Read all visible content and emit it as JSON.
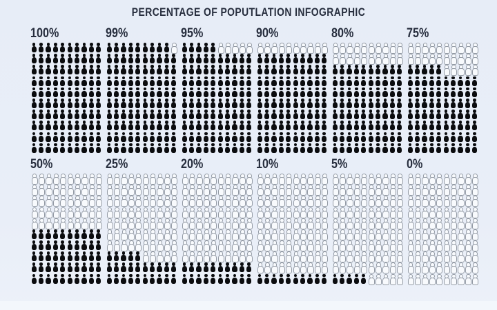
{
  "title": "PERCENTAGE OF POPUTLATION INFOGRAPHIC",
  "colors": {
    "background": "#e9eef8",
    "bottom_strip": "#f3f7fc",
    "icon_filled": "#0b0c0f",
    "icon_outline_stroke": "#939aa4",
    "icon_outline_fill": "#f8fafd",
    "text": "#272e3e"
  },
  "icon": {
    "name": "person-icon",
    "meaning": "1 icon = 1 percent of population"
  },
  "chart_data": {
    "type": "pictogram",
    "title": "PERCENTAGE OF POPUTLATION INFOGRAPHIC",
    "categories": [
      "100%",
      "99%",
      "95%",
      "90%",
      "80%",
      "75%",
      "50%",
      "25%",
      "20%",
      "10%",
      "5%",
      "0%"
    ],
    "values": [
      100,
      99,
      95,
      90,
      80,
      75,
      50,
      25,
      20,
      10,
      5,
      0
    ],
    "grid": {
      "rows": 10,
      "cols": 10,
      "icons_per_block": 100
    },
    "layout": {
      "blocks_per_row": 6,
      "block_rows": 2,
      "fill_rule": "outlined icons occupy top rows; in a partial row filled icons are on the left",
      "legend": "none",
      "axes": "none"
    }
  }
}
